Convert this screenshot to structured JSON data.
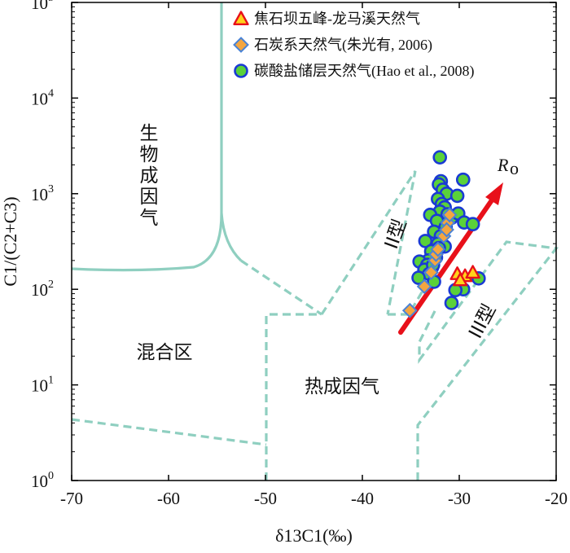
{
  "chart_data": {
    "type": "scatter",
    "xlabel": "δ13C1(‰)",
    "ylabel": "C1/(C2+C3)",
    "xlim": [
      -70,
      -20
    ],
    "ylim": [
      1,
      100000
    ],
    "yscale": "log",
    "x_ticks": [
      "-70",
      "-60",
      "-50",
      "-40",
      "-30",
      "-20"
    ],
    "y_ticks": [
      {
        "base": "10",
        "exp": "0",
        "value": 1
      },
      {
        "base": "10",
        "exp": "1",
        "value": 10
      },
      {
        "base": "10",
        "exp": "2",
        "value": 100
      },
      {
        "base": "10",
        "exp": "3",
        "value": 1000
      },
      {
        "base": "10",
        "exp": "4",
        "value": 10000
      },
      {
        "base": "10",
        "exp": "5",
        "value": 100000
      }
    ],
    "legend_placement": "top-right",
    "series": [
      {
        "name": "焦石坝五峰-龙马溪天然气",
        "marker": "triangle",
        "fill": "#ffd21a",
        "stroke": "#e8101a",
        "points": [
          [
            -30.2,
            145
          ],
          [
            -29.4,
            138
          ],
          [
            -28.6,
            150
          ],
          [
            -29.9,
            125
          ]
        ]
      },
      {
        "name": "石炭系天然气(朱光有, 2006)",
        "marker": "diamond",
        "fill": "#f4a640",
        "stroke": "#4a83d6",
        "points": [
          [
            -35.1,
            60
          ],
          [
            -33.6,
            107
          ],
          [
            -32.9,
            150
          ],
          [
            -32.5,
            200
          ],
          [
            -32.4,
            232
          ],
          [
            -32.2,
            262
          ],
          [
            -31.6,
            360
          ],
          [
            -31.2,
            495
          ],
          [
            -31.0,
            600
          ],
          [
            -31.3,
            420
          ]
        ]
      },
      {
        "name": "碳酸盐储层天然气(Hao  et al., 2008)",
        "marker": "circle",
        "fill": "#5ad13a",
        "stroke": "#1a3ad4",
        "points": [
          [
            -32.0,
            2400
          ],
          [
            -31.9,
            1350
          ],
          [
            -32.1,
            1250
          ],
          [
            -31.7,
            1100
          ],
          [
            -31.3,
            1000
          ],
          [
            -29.6,
            1400
          ],
          [
            -30.2,
            950
          ],
          [
            -32.2,
            880
          ],
          [
            -31.8,
            780
          ],
          [
            -31.5,
            720
          ],
          [
            -32.0,
            650
          ],
          [
            -31.2,
            610
          ],
          [
            -30.8,
            560
          ],
          [
            -33.0,
            600
          ],
          [
            -30.1,
            620
          ],
          [
            -29.5,
            500
          ],
          [
            -28.6,
            480
          ],
          [
            -32.3,
            520
          ],
          [
            -31.4,
            450
          ],
          [
            -32.6,
            400
          ],
          [
            -31.9,
            360
          ],
          [
            -32.2,
            300
          ],
          [
            -31.5,
            280
          ],
          [
            -32.1,
            270
          ],
          [
            -33.5,
            320
          ],
          [
            -32.9,
            250
          ],
          [
            -32.4,
            215
          ],
          [
            -33.2,
            200
          ],
          [
            -34.1,
            195
          ],
          [
            -33.3,
            180
          ],
          [
            -32.8,
            170
          ],
          [
            -33.6,
            160
          ],
          [
            -33.1,
            145
          ],
          [
            -34.2,
            132
          ],
          [
            -32.6,
            120
          ],
          [
            -29.6,
            100
          ],
          [
            -30.4,
            98
          ],
          [
            -28.0,
            130
          ],
          [
            -30.8,
            72
          ],
          [
            -32.7,
            180
          ]
        ]
      }
    ],
    "annotations": {
      "biogenic": [
        "生",
        "物",
        "成",
        "因",
        "气"
      ],
      "mixed": "混合区",
      "thermogenic": "热成因气",
      "type2": "II型",
      "type3": "III型",
      "ro_main": "R",
      "ro_sub": "o"
    }
  },
  "colors": {
    "boundary": "#8fcfc0",
    "ro_arrow": "#e8101a",
    "axis": "#000000"
  }
}
